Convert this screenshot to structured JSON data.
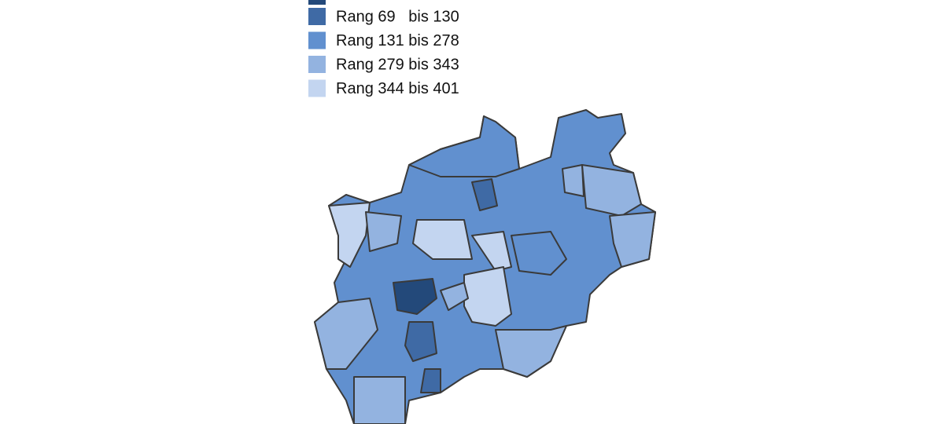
{
  "legend": [
    {
      "label": "Rang 69   bis 130",
      "color": "#3f6aa5"
    },
    {
      "label": "Rang 131 bis 278",
      "color": "#6190cf"
    },
    {
      "label": "Rang 279 bis 343",
      "color": "#93b3e0"
    },
    {
      "label": "Rang 344 bis 401",
      "color": "#c3d5f0"
    }
  ]
}
